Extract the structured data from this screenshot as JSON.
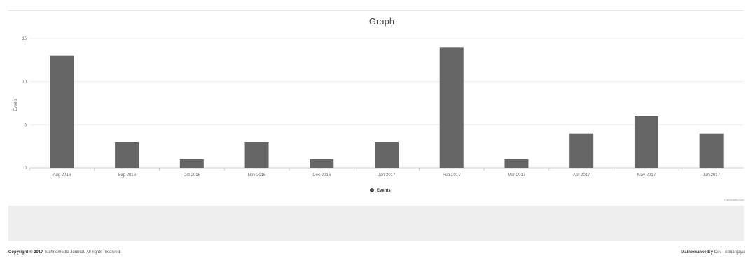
{
  "chart_data": {
    "type": "bar",
    "title": "Graph",
    "xlabel": "",
    "ylabel": "Events",
    "ylim": [
      0,
      15
    ],
    "yticks": [
      "0",
      "5",
      "10",
      "15"
    ],
    "categories": [
      "Aug 2016",
      "Sep 2016",
      "Oct 2016",
      "Nov 2016",
      "Dec 2016",
      "Jan 2017",
      "Feb 2017",
      "Mar 2017",
      "Apr 2017",
      "May 2017",
      "Jun 2017"
    ],
    "series": [
      {
        "name": "Events",
        "values": [
          13,
          3,
          1,
          3,
          1,
          3,
          14,
          1,
          4,
          6,
          4
        ]
      }
    ],
    "grid": true,
    "legend": "bottom-center",
    "bar_color": "#666666"
  },
  "credits": "Highcharts.com",
  "footer": {
    "copyright_strong": "Copyright © 2017",
    "copyright_rest": "Technomedia Journal. All rights reserved.",
    "credit_strong": "Maintenance By",
    "credit_name": "Dev Tribuanjaya"
  }
}
